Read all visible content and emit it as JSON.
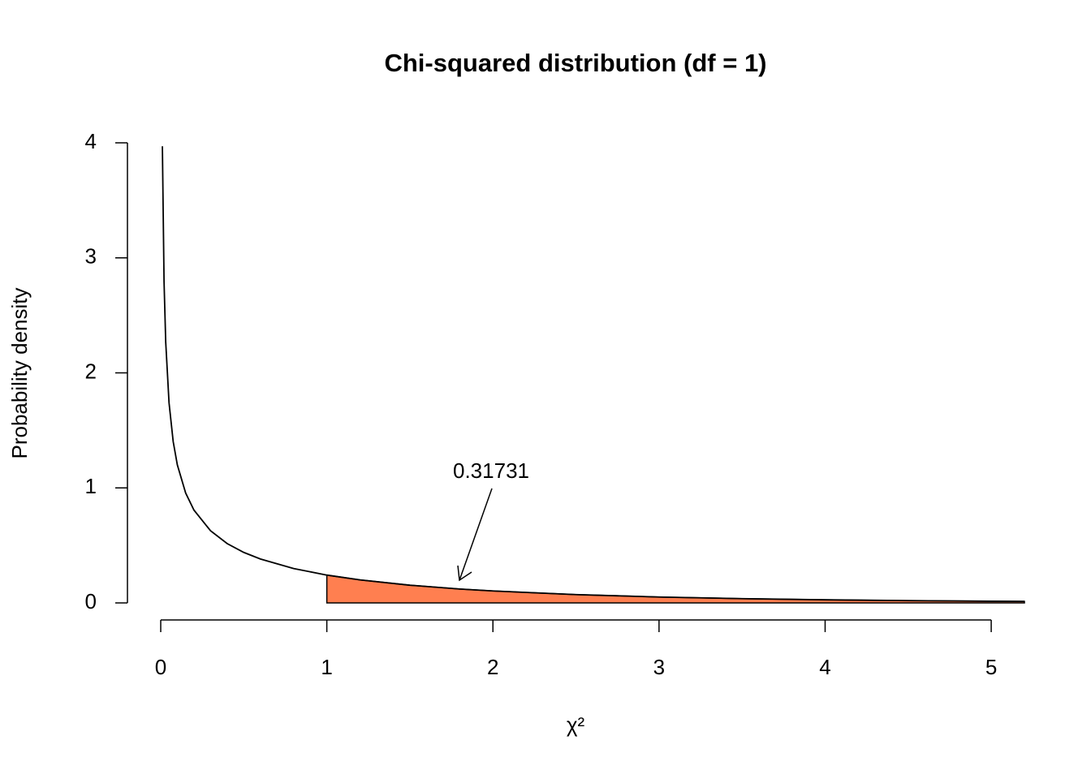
{
  "chart_data": {
    "type": "line",
    "title": "Chi-squared distribution (df = 1)",
    "xlabel": "χ²",
    "ylabel": "Probability density",
    "x": [
      0.01,
      0.02,
      0.03,
      0.05,
      0.075,
      0.1,
      0.15,
      0.2,
      0.3,
      0.4,
      0.5,
      0.6,
      0.8,
      1,
      1.2,
      1.5,
      1.8,
      2,
      2.5,
      3,
      3.5,
      4,
      4.5,
      5,
      5.2
    ],
    "series": [
      {
        "color": "#000000",
        "values": [
          3.97,
          2.793,
          2.269,
          1.74,
          1.403,
          1.2,
          0.956,
          0.807,
          0.627,
          0.516,
          0.439,
          0.382,
          0.299,
          0.242,
          0.2,
          0.154,
          0.121,
          0.104,
          0.0723,
          0.0514,
          0.0371,
          0.027,
          0.0198,
          0.0146,
          0.013
        ]
      }
    ],
    "shaded_from": 1,
    "shade_color": "#ff7f50",
    "annotation": "0.31731",
    "xlim": [
      0,
      5.2
    ],
    "ylim": [
      0,
      4
    ],
    "xticks": [
      0,
      1,
      2,
      3,
      4,
      5
    ],
    "yticks": [
      0,
      1,
      2,
      3,
      4
    ]
  }
}
